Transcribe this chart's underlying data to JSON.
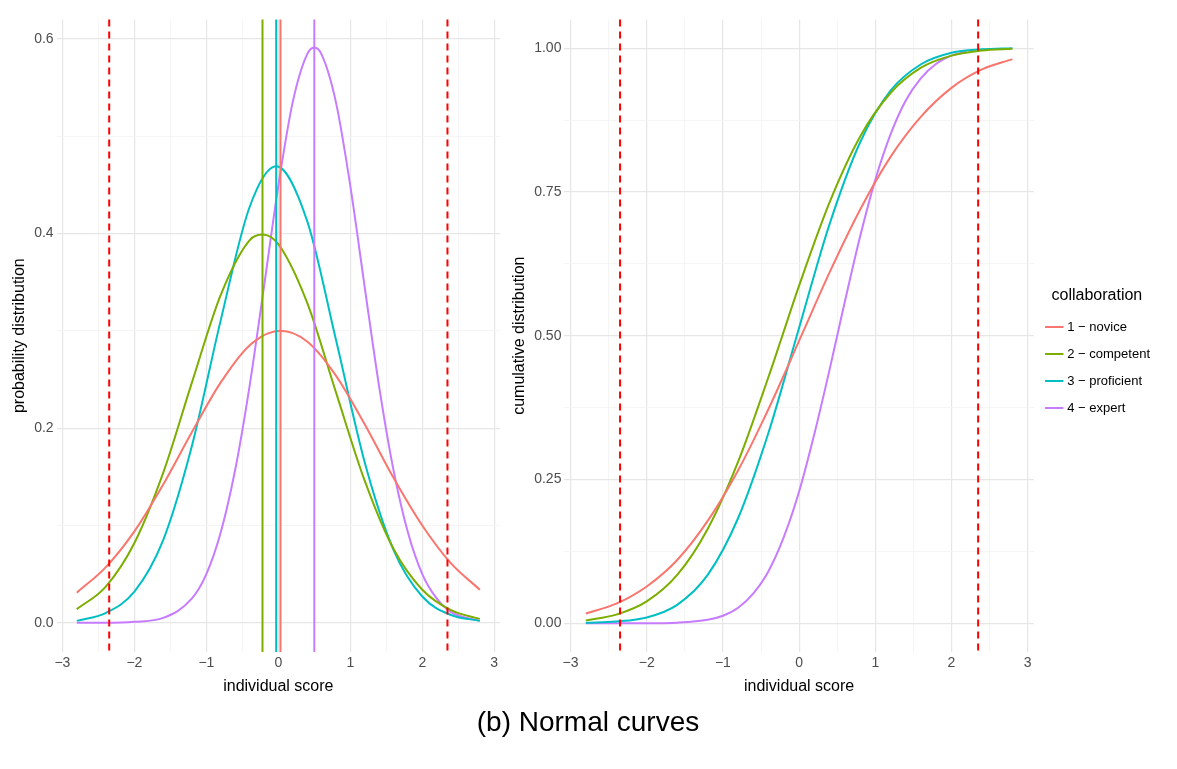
{
  "chart_data": [
    {
      "type": "line",
      "xlabel": "individual score",
      "ylabel": "probability distribution",
      "xlim": [
        -3.08,
        3.08
      ],
      "ylim": [
        -0.03,
        0.62
      ],
      "xticks": [
        {
          "value": -3,
          "label": "−3"
        },
        {
          "value": -2.5,
          "label": null
        },
        {
          "value": -2,
          "label": "−2"
        },
        {
          "value": -1.5,
          "label": null
        },
        {
          "value": -1,
          "label": "−1"
        },
        {
          "value": -0.5,
          "label": null
        },
        0,
        {
          "value": 0.5,
          "label": null
        },
        1,
        {
          "value": 1.5,
          "label": null
        },
        2,
        {
          "value": 2.5,
          "label": null
        },
        3
      ],
      "yticks": [
        {
          "value": 0,
          "label": "0.0"
        },
        {
          "value": 0.1,
          "label": null
        },
        {
          "value": 0.2,
          "label": "0.2"
        },
        {
          "value": 0.3,
          "label": null
        },
        {
          "value": 0.4,
          "label": "0.4"
        },
        {
          "value": 0.5,
          "label": null
        },
        {
          "value": 0.6,
          "label": "0.6"
        }
      ],
      "grid": true,
      "legend": false,
      "marker": "none",
      "series": [
        {
          "color": "#f8766d",
          "x": [
            -2.8,
            -2.4,
            -2.0,
            -1.6,
            -1.2,
            -0.8,
            -0.4,
            0.03,
            0.4,
            0.8,
            1.2,
            1.6,
            2.0,
            2.4,
            2.8
          ],
          "values": [
            0.031,
            0.057,
            0.094,
            0.142,
            0.196,
            0.247,
            0.285,
            0.3,
            0.289,
            0.254,
            0.204,
            0.149,
            0.1,
            0.061,
            0.034
          ]
        },
        {
          "color": "#7cae00",
          "x": [
            -2.8,
            -2.4,
            -2.0,
            -1.6,
            -1.2,
            -0.8,
            -0.4,
            -0.22,
            0.0,
            0.4,
            0.8,
            1.2,
            1.6,
            2.0,
            2.4,
            2.8
          ],
          "values": [
            0.014,
            0.037,
            0.082,
            0.154,
            0.247,
            0.337,
            0.393,
            0.399,
            0.389,
            0.329,
            0.237,
            0.146,
            0.076,
            0.034,
            0.013,
            0.004
          ]
        },
        {
          "color": "#00bfc4",
          "x": [
            -2.8,
            -2.4,
            -2.0,
            -1.6,
            -1.2,
            -0.8,
            -0.4,
            -0.03,
            0.4,
            0.8,
            1.2,
            1.6,
            2.0,
            2.4,
            2.8
          ],
          "values": [
            0.002,
            0.01,
            0.032,
            0.085,
            0.182,
            0.311,
            0.427,
            0.469,
            0.413,
            0.291,
            0.165,
            0.075,
            0.027,
            0.008,
            0.002
          ]
        },
        {
          "color": "#c77cff",
          "x": [
            -2.8,
            -2.4,
            -2.0,
            -1.6,
            -1.2,
            -1.0,
            -0.8,
            -0.6,
            -0.4,
            -0.2,
            0.0,
            0.2,
            0.4,
            0.5,
            0.6,
            0.8,
            1.0,
            1.2,
            1.4,
            1.6,
            1.8,
            2.0,
            2.2,
            2.4,
            2.8
          ],
          "values": [
            0.0,
            0.0,
            0.001,
            0.005,
            0.025,
            0.05,
            0.093,
            0.157,
            0.243,
            0.345,
            0.449,
            0.535,
            0.584,
            0.591,
            0.584,
            0.535,
            0.449,
            0.345,
            0.243,
            0.157,
            0.093,
            0.05,
            0.025,
            0.011,
            0.002
          ]
        }
      ],
      "ref_lines": [
        {
          "axis": "x",
          "value": -2.35,
          "color": "#ff0000",
          "line_style": "dashed"
        },
        {
          "axis": "x",
          "value": 2.35,
          "color": "#ff0000",
          "line_style": "dashed"
        },
        {
          "axis": "x",
          "value": 0.03,
          "color": "#f8766d",
          "line_style": "solid"
        },
        {
          "axis": "x",
          "value": -0.22,
          "color": "#7cae00",
          "line_style": "solid"
        },
        {
          "axis": "x",
          "value": -0.03,
          "color": "#00bfc4",
          "line_style": "solid"
        },
        {
          "axis": "x",
          "value": 0.5,
          "color": "#c77cff",
          "line_style": "solid"
        }
      ]
    },
    {
      "type": "line",
      "xlabel": "individual score",
      "ylabel": "cumulative distribution",
      "legend_title": "collaboration",
      "xlim": [
        -3.08,
        3.08
      ],
      "ylim": [
        -0.05,
        1.05
      ],
      "xticks": [
        {
          "value": -3,
          "label": "−3"
        },
        {
          "value": -2.5,
          "label": null
        },
        {
          "value": -2,
          "label": "−2"
        },
        {
          "value": -1.5,
          "label": null
        },
        {
          "value": -1,
          "label": "−1"
        },
        {
          "value": -0.5,
          "label": null
        },
        0,
        {
          "value": 0.5,
          "label": null
        },
        1,
        {
          "value": 1.5,
          "label": null
        },
        2,
        {
          "value": 2.5,
          "label": null
        },
        3
      ],
      "yticks": [
        {
          "value": 0,
          "label": "0.00"
        },
        {
          "value": 0.125,
          "label": null
        },
        {
          "value": 0.25,
          "label": "0.25"
        },
        {
          "value": 0.375,
          "label": null
        },
        {
          "value": 0.5,
          "label": "0.50"
        },
        {
          "value": 0.625,
          "label": null
        },
        {
          "value": 0.75,
          "label": "0.75"
        },
        {
          "value": 0.875,
          "label": null
        },
        {
          "value": 1,
          "label": "1.00"
        }
      ],
      "grid": true,
      "legend": "right",
      "marker": "none",
      "series": [
        {
          "name": "1 − novice",
          "color": "#f8766d",
          "x": [
            -2.8,
            -2.4,
            -2.0,
            -1.6,
            -1.2,
            -0.8,
            -0.4,
            0.03,
            0.4,
            0.8,
            1.2,
            1.6,
            2.0,
            2.4,
            2.8
          ],
          "values": [
            0.017,
            0.034,
            0.064,
            0.11,
            0.178,
            0.266,
            0.373,
            0.5,
            0.61,
            0.719,
            0.811,
            0.881,
            0.931,
            0.963,
            0.981
          ]
        },
        {
          "name": "2 − competent",
          "color": "#7cae00",
          "x": [
            -2.8,
            -2.4,
            -2.0,
            -1.6,
            -1.2,
            -0.8,
            -0.4,
            -0.22,
            0.0,
            0.4,
            0.8,
            1.2,
            1.6,
            2.0,
            2.4,
            2.8
          ],
          "values": [
            0.005,
            0.015,
            0.038,
            0.084,
            0.164,
            0.281,
            0.429,
            0.5,
            0.587,
            0.732,
            0.846,
            0.922,
            0.966,
            0.987,
            0.996,
            0.999
          ]
        },
        {
          "name": "3 − proficient",
          "color": "#00bfc4",
          "x": [
            -2.8,
            -2.4,
            -2.0,
            -1.6,
            -1.2,
            -0.8,
            -0.4,
            -0.03,
            0.4,
            0.8,
            1.2,
            1.6,
            2.0,
            2.4,
            2.8
          ],
          "values": [
            0.001,
            0.003,
            0.01,
            0.032,
            0.084,
            0.183,
            0.332,
            0.5,
            0.694,
            0.836,
            0.926,
            0.972,
            0.992,
            0.998,
            1.0
          ]
        },
        {
          "name": "4 − expert",
          "color": "#c77cff",
          "x": [
            -2.8,
            -2.4,
            -2.0,
            -1.6,
            -1.2,
            -1.0,
            -0.8,
            -0.6,
            -0.4,
            -0.2,
            0.0,
            0.2,
            0.4,
            0.5,
            0.6,
            0.8,
            1.0,
            1.2,
            1.4,
            1.6,
            1.8,
            2.0,
            2.2
          ],
          "values": [
            0.0,
            0.0,
            0.0,
            0.001,
            0.006,
            0.013,
            0.027,
            0.052,
            0.091,
            0.15,
            0.229,
            0.329,
            0.441,
            0.5,
            0.559,
            0.672,
            0.771,
            0.85,
            0.909,
            0.948,
            0.973,
            0.987,
            0.994
          ]
        }
      ],
      "ref_lines": [
        {
          "axis": "x",
          "value": -2.35,
          "color": "#ff0000",
          "line_style": "dashed"
        },
        {
          "axis": "x",
          "value": 2.35,
          "color": "#ff0000",
          "line_style": "dashed"
        }
      ],
      "annotations": [
        "(b) Normal curves"
      ]
    }
  ]
}
